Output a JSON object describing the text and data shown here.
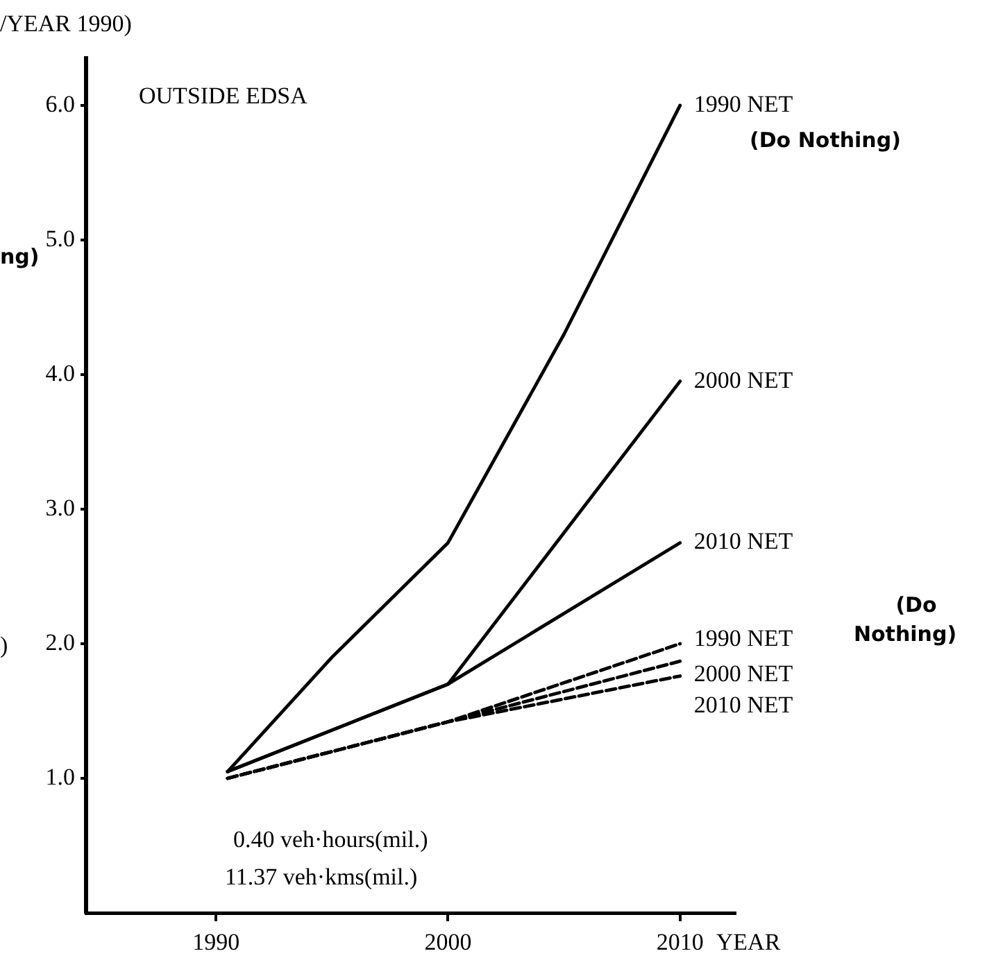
{
  "chart_data": {
    "type": "line",
    "xlabel": "YEAR",
    "annotations": [
      "/YEAR 1990)",
      "ng)",
      ")",
      "OUTSIDE EDSA",
      "(Do Nothing)",
      "(Do Nothing)",
      "0.40 veh·hours(mil.)",
      "11.37 veh·kms(mil.)"
    ],
    "series": [
      {
        "name": "1990 NET",
        "color": "#000000",
        "line_style": "solid",
        "x": [
          1990.5,
          1995,
          2000,
          2005,
          2010
        ],
        "values": [
          1.05,
          1.9,
          2.75,
          4.3,
          6.0
        ]
      },
      {
        "name": "2000 NET",
        "color": "#000000",
        "line_style": "solid",
        "x": [
          1990.5,
          2000,
          2010
        ],
        "values": [
          1.05,
          1.7,
          3.95
        ]
      },
      {
        "name": "2010 NET",
        "color": "#000000",
        "line_style": "solid",
        "x": [
          1990.5,
          2000,
          2010
        ],
        "values": [
          1.05,
          1.7,
          2.75
        ]
      },
      {
        "name": "1990 NET",
        "color": "#000000",
        "line_style": "dashed",
        "x": [
          1990.5,
          2000,
          2010
        ],
        "values": [
          1.0,
          1.42,
          2.0
        ]
      },
      {
        "name": "2000 NET",
        "color": "#000000",
        "line_style": "dashed",
        "x": [
          1990.5,
          2000,
          2010
        ],
        "values": [
          1.0,
          1.42,
          1.87
        ]
      },
      {
        "name": "2010 NET",
        "color": "#000000",
        "line_style": "dashed",
        "x": [
          1990.5,
          2000,
          2010
        ],
        "values": [
          1.0,
          1.42,
          1.76
        ]
      }
    ],
    "xlim": [
      1984.4,
      2012.4
    ],
    "xticks": [
      1990,
      2000,
      2010
    ],
    "ylim": [
      0,
      6.35
    ],
    "yticks": [
      {
        "value": 1,
        "label": "1.0"
      },
      {
        "value": 2,
        "label": "2.0"
      },
      {
        "value": 3,
        "label": "3.0"
      },
      {
        "value": 4,
        "label": "4.0"
      },
      {
        "value": 5,
        "label": "5.0"
      },
      {
        "value": 6,
        "label": "6.0"
      }
    ],
    "grid": false,
    "legend": false,
    "marker": "none"
  }
}
